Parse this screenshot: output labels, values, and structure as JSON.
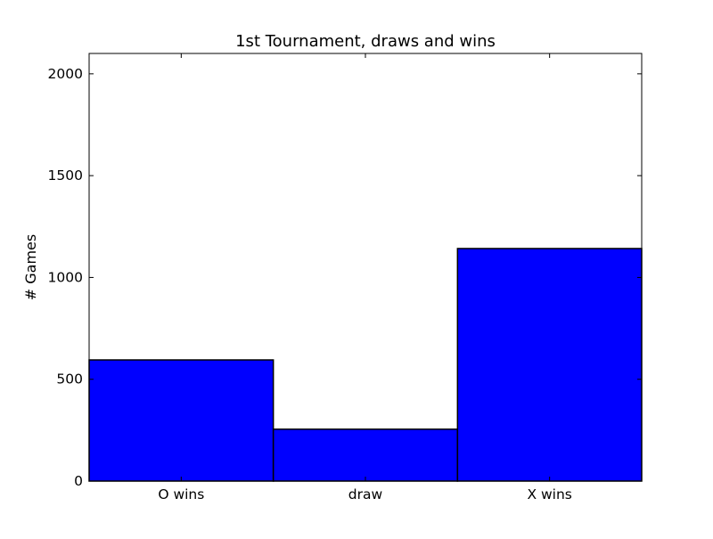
{
  "chart_data": {
    "type": "bar",
    "title": "1st Tournament, draws and wins",
    "xlabel": "",
    "ylabel": "# Games",
    "categories": [
      "O wins",
      "draw",
      "X wins"
    ],
    "values": [
      595,
      255,
      1142
    ],
    "ylim": [
      0,
      2100
    ],
    "yticks": [
      0,
      500,
      1000,
      1500,
      2000
    ],
    "ytick_labels": [
      "0",
      "500",
      "1000",
      "1500",
      "2000"
    ],
    "bar_color": "#0000ff",
    "edge_color": "#000000",
    "grid": false,
    "legend": "none"
  }
}
